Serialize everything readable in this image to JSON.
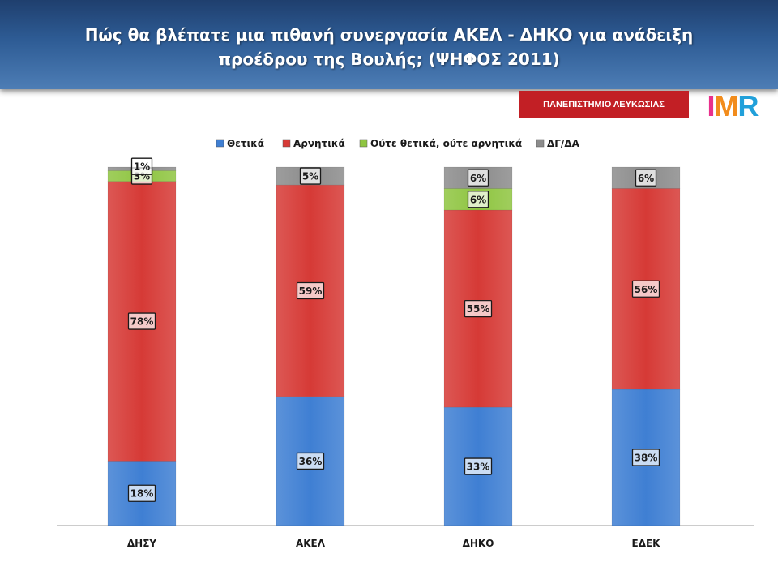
{
  "header": {
    "title": "Πώς θα βλέπατε μια πιθανή συνεργασία ΑΚΕΛ - ΔΗΚΟ για ανάδειξη προέδρου της Βουλής; (ΨΗΦΟΣ 2011)"
  },
  "branding": {
    "university_label": "ΠΑΝΕΠΙΣΤΗΜΙΟ ΛΕΥΚΩΣΙΑΣ",
    "logo_text": "IMR"
  },
  "chart_data": {
    "type": "bar",
    "stacked": true,
    "title": "",
    "xlabel": "",
    "ylabel": "",
    "ylim": [
      0,
      100
    ],
    "grid": false,
    "legend_position": "top",
    "categories": [
      "ΔΗΣΥ",
      "ΑΚΕΛ",
      "ΔΗΚΟ",
      "ΕΔΕΚ"
    ],
    "series": [
      {
        "name": "Θετικά",
        "color": "#3f7fd3",
        "values": [
          18,
          36,
          33,
          38
        ],
        "labels": [
          "18%",
          "36%",
          "33%",
          "38%"
        ]
      },
      {
        "name": "Αρνητικά",
        "color": "#d63a36",
        "values": [
          78,
          59,
          55,
          56
        ],
        "labels": [
          "78%",
          "59%",
          "55%",
          "56%"
        ]
      },
      {
        "name": "Ούτε θετικά, ούτε αρνητικά",
        "color": "#8fc541",
        "values": [
          3,
          0,
          6,
          0
        ],
        "labels": [
          "3%",
          "",
          "6%",
          ""
        ]
      },
      {
        "name": "ΔΓ/ΔΑ",
        "color": "#8c8c8c",
        "values": [
          1,
          5,
          6,
          6
        ],
        "labels": [
          "1%",
          "5%",
          "6%",
          "6%"
        ]
      }
    ]
  }
}
